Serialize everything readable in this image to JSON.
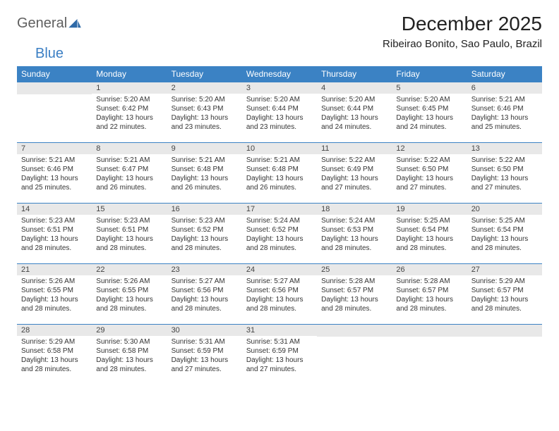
{
  "logo": {
    "word1": "General",
    "word2": "Blue"
  },
  "title": "December 2025",
  "location": "Ribeirao Bonito, Sao Paulo, Brazil",
  "colors": {
    "header_bg": "#3b82c4",
    "header_text": "#ffffff",
    "daynum_bg": "#e8e8e8",
    "border": "#3b82c4",
    "logo_gray": "#5f5f5f",
    "logo_blue": "#3b7fc4"
  },
  "weekdays": [
    "Sunday",
    "Monday",
    "Tuesday",
    "Wednesday",
    "Thursday",
    "Friday",
    "Saturday"
  ],
  "weeks": [
    [
      null,
      {
        "n": "1",
        "sunrise": "Sunrise: 5:20 AM",
        "sunset": "Sunset: 6:42 PM",
        "daylight": "Daylight: 13 hours and 22 minutes."
      },
      {
        "n": "2",
        "sunrise": "Sunrise: 5:20 AM",
        "sunset": "Sunset: 6:43 PM",
        "daylight": "Daylight: 13 hours and 23 minutes."
      },
      {
        "n": "3",
        "sunrise": "Sunrise: 5:20 AM",
        "sunset": "Sunset: 6:44 PM",
        "daylight": "Daylight: 13 hours and 23 minutes."
      },
      {
        "n": "4",
        "sunrise": "Sunrise: 5:20 AM",
        "sunset": "Sunset: 6:44 PM",
        "daylight": "Daylight: 13 hours and 24 minutes."
      },
      {
        "n": "5",
        "sunrise": "Sunrise: 5:20 AM",
        "sunset": "Sunset: 6:45 PM",
        "daylight": "Daylight: 13 hours and 24 minutes."
      },
      {
        "n": "6",
        "sunrise": "Sunrise: 5:21 AM",
        "sunset": "Sunset: 6:46 PM",
        "daylight": "Daylight: 13 hours and 25 minutes."
      }
    ],
    [
      {
        "n": "7",
        "sunrise": "Sunrise: 5:21 AM",
        "sunset": "Sunset: 6:46 PM",
        "daylight": "Daylight: 13 hours and 25 minutes."
      },
      {
        "n": "8",
        "sunrise": "Sunrise: 5:21 AM",
        "sunset": "Sunset: 6:47 PM",
        "daylight": "Daylight: 13 hours and 26 minutes."
      },
      {
        "n": "9",
        "sunrise": "Sunrise: 5:21 AM",
        "sunset": "Sunset: 6:48 PM",
        "daylight": "Daylight: 13 hours and 26 minutes."
      },
      {
        "n": "10",
        "sunrise": "Sunrise: 5:21 AM",
        "sunset": "Sunset: 6:48 PM",
        "daylight": "Daylight: 13 hours and 26 minutes."
      },
      {
        "n": "11",
        "sunrise": "Sunrise: 5:22 AM",
        "sunset": "Sunset: 6:49 PM",
        "daylight": "Daylight: 13 hours and 27 minutes."
      },
      {
        "n": "12",
        "sunrise": "Sunrise: 5:22 AM",
        "sunset": "Sunset: 6:50 PM",
        "daylight": "Daylight: 13 hours and 27 minutes."
      },
      {
        "n": "13",
        "sunrise": "Sunrise: 5:22 AM",
        "sunset": "Sunset: 6:50 PM",
        "daylight": "Daylight: 13 hours and 27 minutes."
      }
    ],
    [
      {
        "n": "14",
        "sunrise": "Sunrise: 5:23 AM",
        "sunset": "Sunset: 6:51 PM",
        "daylight": "Daylight: 13 hours and 28 minutes."
      },
      {
        "n": "15",
        "sunrise": "Sunrise: 5:23 AM",
        "sunset": "Sunset: 6:51 PM",
        "daylight": "Daylight: 13 hours and 28 minutes."
      },
      {
        "n": "16",
        "sunrise": "Sunrise: 5:23 AM",
        "sunset": "Sunset: 6:52 PM",
        "daylight": "Daylight: 13 hours and 28 minutes."
      },
      {
        "n": "17",
        "sunrise": "Sunrise: 5:24 AM",
        "sunset": "Sunset: 6:52 PM",
        "daylight": "Daylight: 13 hours and 28 minutes."
      },
      {
        "n": "18",
        "sunrise": "Sunrise: 5:24 AM",
        "sunset": "Sunset: 6:53 PM",
        "daylight": "Daylight: 13 hours and 28 minutes."
      },
      {
        "n": "19",
        "sunrise": "Sunrise: 5:25 AM",
        "sunset": "Sunset: 6:54 PM",
        "daylight": "Daylight: 13 hours and 28 minutes."
      },
      {
        "n": "20",
        "sunrise": "Sunrise: 5:25 AM",
        "sunset": "Sunset: 6:54 PM",
        "daylight": "Daylight: 13 hours and 28 minutes."
      }
    ],
    [
      {
        "n": "21",
        "sunrise": "Sunrise: 5:26 AM",
        "sunset": "Sunset: 6:55 PM",
        "daylight": "Daylight: 13 hours and 28 minutes."
      },
      {
        "n": "22",
        "sunrise": "Sunrise: 5:26 AM",
        "sunset": "Sunset: 6:55 PM",
        "daylight": "Daylight: 13 hours and 28 minutes."
      },
      {
        "n": "23",
        "sunrise": "Sunrise: 5:27 AM",
        "sunset": "Sunset: 6:56 PM",
        "daylight": "Daylight: 13 hours and 28 minutes."
      },
      {
        "n": "24",
        "sunrise": "Sunrise: 5:27 AM",
        "sunset": "Sunset: 6:56 PM",
        "daylight": "Daylight: 13 hours and 28 minutes."
      },
      {
        "n": "25",
        "sunrise": "Sunrise: 5:28 AM",
        "sunset": "Sunset: 6:57 PM",
        "daylight": "Daylight: 13 hours and 28 minutes."
      },
      {
        "n": "26",
        "sunrise": "Sunrise: 5:28 AM",
        "sunset": "Sunset: 6:57 PM",
        "daylight": "Daylight: 13 hours and 28 minutes."
      },
      {
        "n": "27",
        "sunrise": "Sunrise: 5:29 AM",
        "sunset": "Sunset: 6:57 PM",
        "daylight": "Daylight: 13 hours and 28 minutes."
      }
    ],
    [
      {
        "n": "28",
        "sunrise": "Sunrise: 5:29 AM",
        "sunset": "Sunset: 6:58 PM",
        "daylight": "Daylight: 13 hours and 28 minutes."
      },
      {
        "n": "29",
        "sunrise": "Sunrise: 5:30 AM",
        "sunset": "Sunset: 6:58 PM",
        "daylight": "Daylight: 13 hours and 28 minutes."
      },
      {
        "n": "30",
        "sunrise": "Sunrise: 5:31 AM",
        "sunset": "Sunset: 6:59 PM",
        "daylight": "Daylight: 13 hours and 27 minutes."
      },
      {
        "n": "31",
        "sunrise": "Sunrise: 5:31 AM",
        "sunset": "Sunset: 6:59 PM",
        "daylight": "Daylight: 13 hours and 27 minutes."
      },
      null,
      null,
      null
    ]
  ]
}
